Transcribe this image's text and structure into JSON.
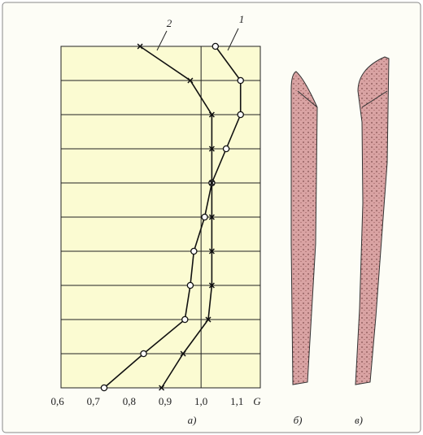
{
  "chart_data": {
    "type": "line",
    "orientation": "horizontal",
    "xlabel": "G",
    "categories": [
      null,
      null,
      null,
      null,
      null,
      null,
      null,
      null,
      null,
      null,
      null
    ],
    "series": [
      {
        "name": "1",
        "color": "#111111",
        "marker": "circle",
        "values": [
          1.04,
          1.11,
          1.11,
          1.07,
          1.03,
          1.01,
          0.98,
          0.97,
          0.955,
          0.84,
          0.73
        ]
      },
      {
        "name": "2",
        "color": "#111111",
        "marker": "cross",
        "values": [
          0.83,
          0.97,
          1.03,
          1.03,
          1.03,
          1.03,
          1.03,
          1.03,
          1.02,
          0.95,
          0.89
        ]
      }
    ],
    "xlim": [
      0.61,
      1.165
    ],
    "xticks": [
      {
        "value": 0.6,
        "label": "0,6"
      },
      {
        "value": 0.7,
        "label": "0,7"
      },
      {
        "value": 0.8,
        "label": "0,8"
      },
      {
        "value": 0.9,
        "label": "0,9"
      },
      {
        "value": 1.0,
        "label": "1,0"
      },
      {
        "value": 1.1,
        "label": "1,1"
      }
    ],
    "vline": 1,
    "panel_labels": [
      "а)",
      "б)",
      "в)"
    ]
  }
}
